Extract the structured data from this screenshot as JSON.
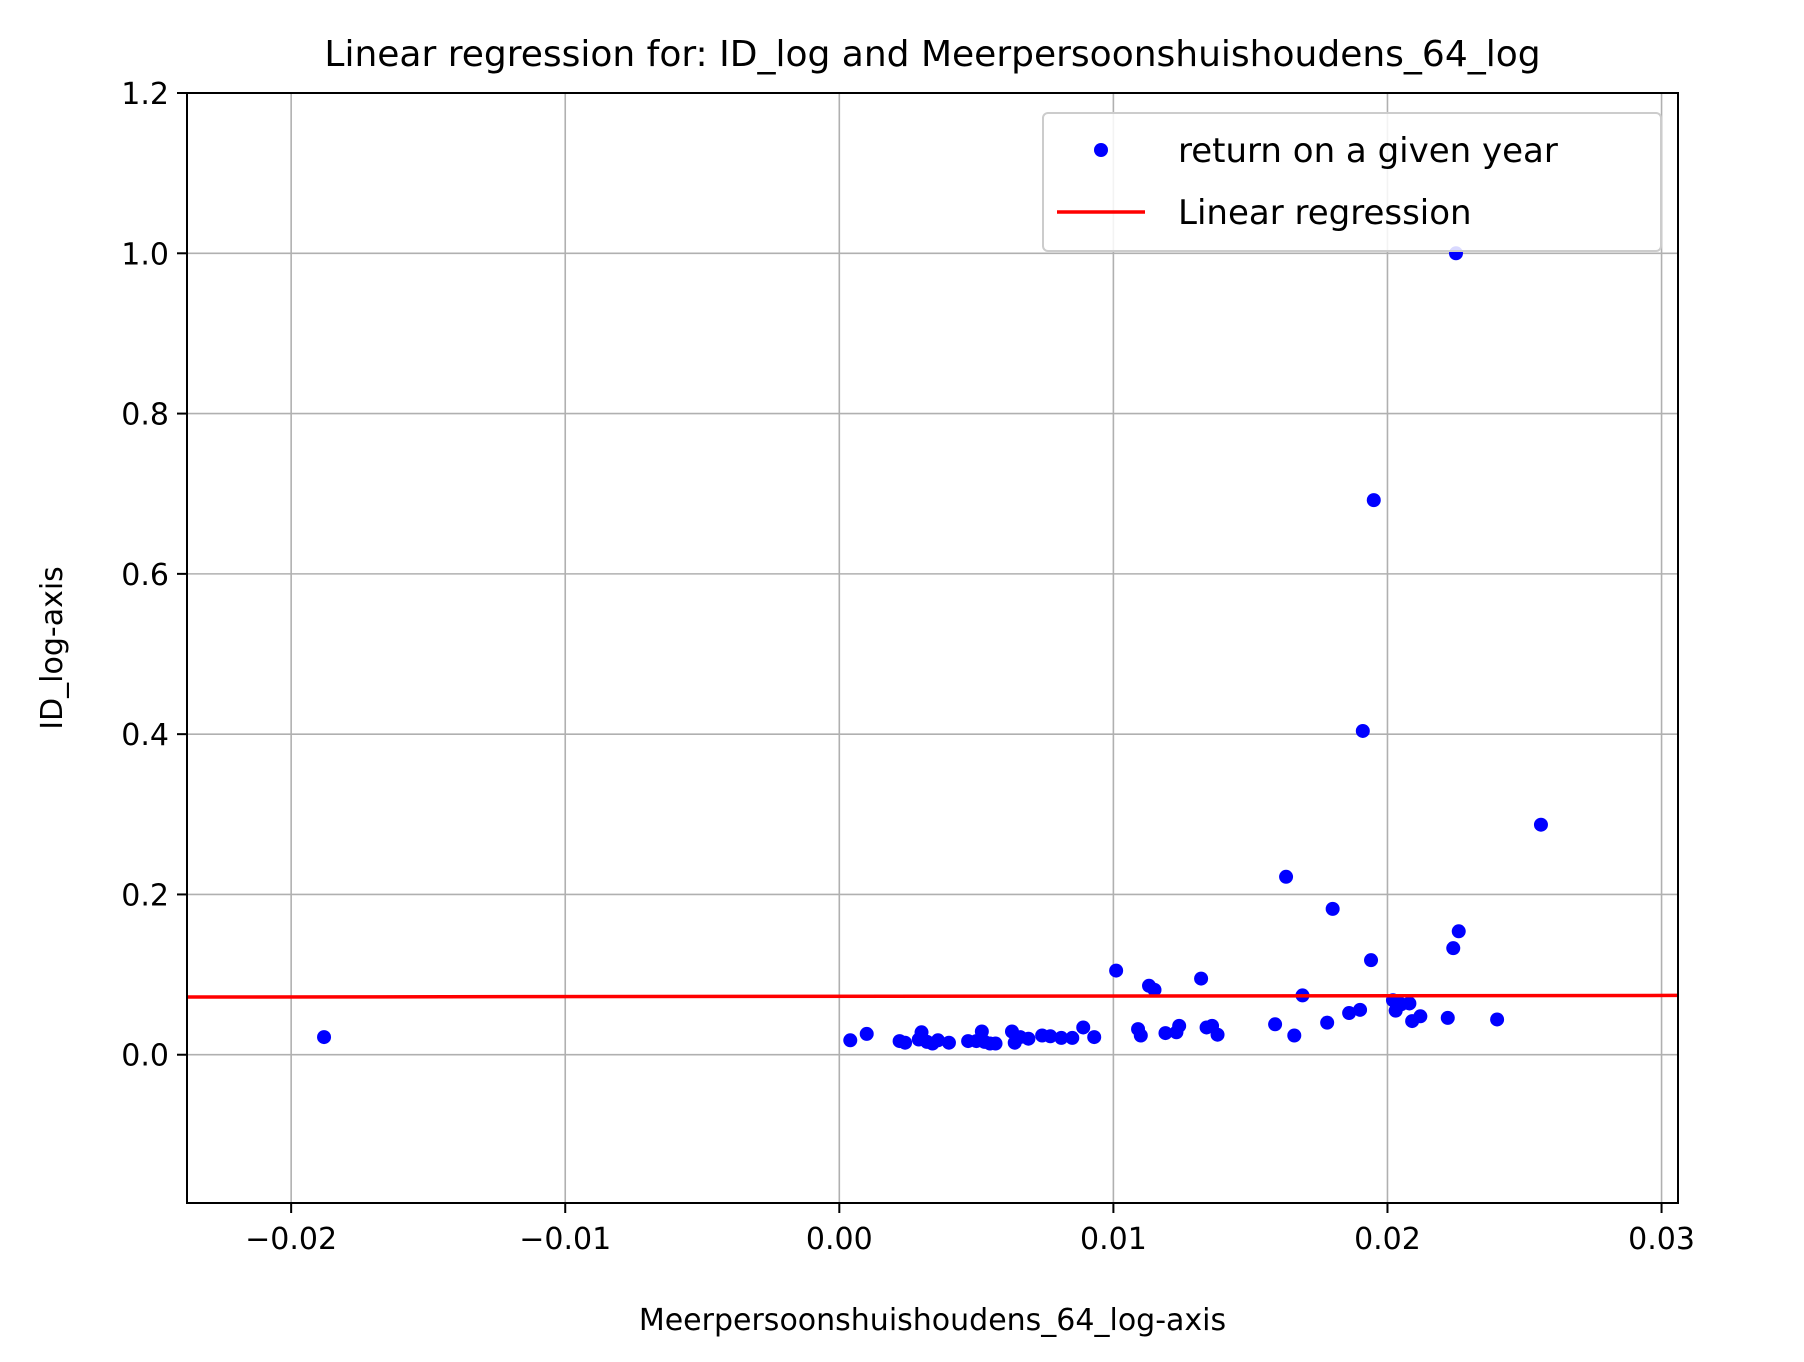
{
  "chart_data": {
    "type": "scatter",
    "title": "Linear regression for: ID_log and Meerpersoonshuishoudens_64_log",
    "xlabel": "Meerpersoonshuishoudens_64_log-axis",
    "ylabel": "ID_log-axis",
    "xlim": [
      -0.0238,
      0.0306
    ],
    "ylim": [
      -0.185,
      1.2
    ],
    "xticks": [
      -0.02,
      -0.01,
      0.0,
      0.01,
      0.02,
      0.03
    ],
    "xtick_labels": [
      "−0.02",
      "−0.01",
      "0.00",
      "0.01",
      "0.02",
      "0.03"
    ],
    "yticks": [
      0.0,
      0.2,
      0.4,
      0.6,
      0.8,
      1.0,
      1.2
    ],
    "ytick_labels": [
      "0.0",
      "0.2",
      "0.4",
      "0.6",
      "0.8",
      "1.0",
      "1.2"
    ],
    "grid": true,
    "legend_position": "top-right",
    "colors": {
      "scatter": "#0000ff",
      "line": "#ff0000",
      "grid": "#b0b0b0",
      "legend_border": "#cccccc"
    },
    "series": [
      {
        "name": "return on a given year",
        "kind": "scatter",
        "points": [
          [
            -0.0188,
            0.022
          ],
          [
            0.0004,
            0.018
          ],
          [
            0.001,
            0.026
          ],
          [
            0.0022,
            0.017
          ],
          [
            0.0024,
            0.015
          ],
          [
            0.0029,
            0.019
          ],
          [
            0.003,
            0.028
          ],
          [
            0.0032,
            0.016
          ],
          [
            0.0034,
            0.014
          ],
          [
            0.0036,
            0.018
          ],
          [
            0.004,
            0.015
          ],
          [
            0.0047,
            0.017
          ],
          [
            0.005,
            0.017
          ],
          [
            0.0052,
            0.029
          ],
          [
            0.0053,
            0.016
          ],
          [
            0.0055,
            0.014
          ],
          [
            0.0057,
            0.014
          ],
          [
            0.0063,
            0.029
          ],
          [
            0.0064,
            0.015
          ],
          [
            0.0066,
            0.022
          ],
          [
            0.0069,
            0.02
          ],
          [
            0.0074,
            0.024
          ],
          [
            0.0077,
            0.023
          ],
          [
            0.0081,
            0.021
          ],
          [
            0.0085,
            0.021
          ],
          [
            0.0089,
            0.034
          ],
          [
            0.0093,
            0.022
          ],
          [
            0.0101,
            0.105
          ],
          [
            0.0109,
            0.032
          ],
          [
            0.011,
            0.024
          ],
          [
            0.0113,
            0.086
          ],
          [
            0.0115,
            0.081
          ],
          [
            0.0119,
            0.027
          ],
          [
            0.0123,
            0.028
          ],
          [
            0.0124,
            0.036
          ],
          [
            0.0132,
            0.095
          ],
          [
            0.0134,
            0.034
          ],
          [
            0.0136,
            0.036
          ],
          [
            0.0138,
            0.025
          ],
          [
            0.0159,
            0.038
          ],
          [
            0.0163,
            0.222
          ],
          [
            0.0166,
            0.024
          ],
          [
            0.0169,
            0.074
          ],
          [
            0.0178,
            0.04
          ],
          [
            0.018,
            0.182
          ],
          [
            0.0186,
            0.052
          ],
          [
            0.019,
            0.056
          ],
          [
            0.0191,
            0.404
          ],
          [
            0.0194,
            0.118
          ],
          [
            0.0195,
            0.692
          ],
          [
            0.0202,
            0.068
          ],
          [
            0.0203,
            0.055
          ],
          [
            0.0205,
            0.063
          ],
          [
            0.0208,
            0.064
          ],
          [
            0.0209,
            0.042
          ],
          [
            0.0212,
            0.048
          ],
          [
            0.0222,
            0.046
          ],
          [
            0.0224,
            0.133
          ],
          [
            0.0225,
            1.0
          ],
          [
            0.0226,
            0.154
          ],
          [
            0.024,
            0.044
          ],
          [
            0.0256,
            0.287
          ]
        ]
      },
      {
        "name": "Linear regression",
        "kind": "line",
        "points": [
          [
            -0.0238,
            0.072
          ],
          [
            0.0306,
            0.074
          ]
        ]
      }
    ]
  }
}
